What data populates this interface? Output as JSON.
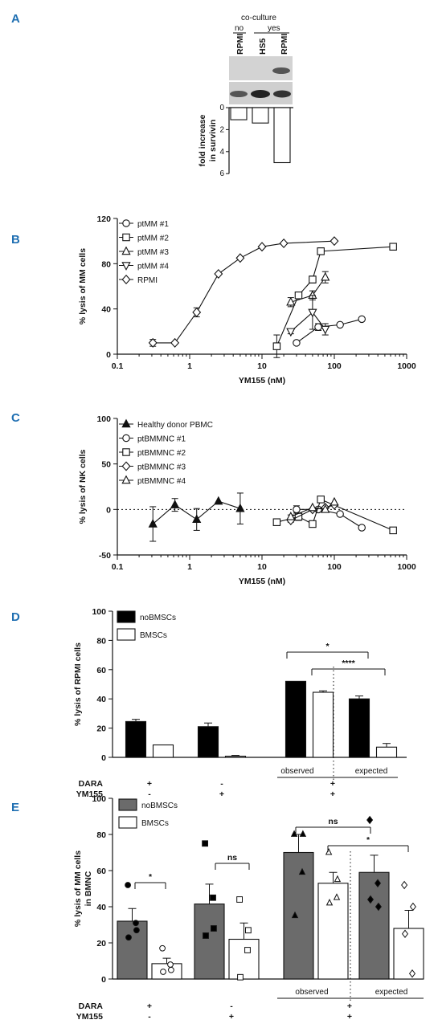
{
  "panels": {
    "A": {
      "letter": "A",
      "coculture_label": "co-culture",
      "no_label": "no",
      "yes_label": "yes",
      "lanes": [
        "RPMI",
        "HS5",
        "RPMI"
      ],
      "ylabel": "fold increase\nin survivin",
      "ticks": [
        "0",
        "2",
        "4",
        "6"
      ]
    },
    "B": {
      "letter": "B"
    },
    "C": {
      "letter": "C"
    },
    "D": {
      "letter": "D"
    },
    "E": {
      "letter": "E"
    }
  },
  "chart_data": [
    {
      "id": "A",
      "type": "bar",
      "categories": [
        "RPMI",
        "HS5",
        "RPMI"
      ],
      "values": [
        1.1,
        1.4,
        5.0
      ],
      "ylabel": "fold increase in survivin",
      "ylim": [
        0,
        6
      ],
      "yticks": [
        0,
        2,
        4,
        6
      ],
      "orientation": "downward"
    },
    {
      "id": "B",
      "type": "line",
      "xscale": "log",
      "xlim": [
        0.1,
        1000
      ],
      "ylim": [
        0,
        120
      ],
      "xticks": [
        "0.1",
        "1",
        "10",
        "100",
        "1000"
      ],
      "yticks": [
        "0",
        "40",
        "80",
        "120"
      ],
      "xlabel": "YM155 (nM)",
      "ylabel": "% lysis of MM cells",
      "legend": "top-left",
      "series": [
        {
          "name": "ptMM #1",
          "marker": "circle",
          "x": [
            30,
            60,
            120,
            240
          ],
          "y": [
            10,
            24,
            26,
            31
          ],
          "err": [
            0,
            3,
            0,
            0
          ]
        },
        {
          "name": "ptMM #2",
          "marker": "square",
          "x": [
            16,
            32,
            50,
            65,
            650
          ],
          "y": [
            7,
            52,
            66,
            91,
            95
          ],
          "err": [
            10,
            3,
            3,
            3,
            3
          ]
        },
        {
          "name": "ptMM #3",
          "marker": "triangle-up",
          "x": [
            25,
            50,
            75
          ],
          "y": [
            46,
            52,
            68
          ],
          "err": [
            4,
            4,
            5
          ]
        },
        {
          "name": "ptMM #4",
          "marker": "triangle-down",
          "x": [
            25,
            50,
            75
          ],
          "y": [
            20,
            37,
            22
          ],
          "err": [
            2,
            15,
            5
          ]
        },
        {
          "name": "RPMI",
          "marker": "diamond",
          "x": [
            0.31,
            0.625,
            1.25,
            2.5,
            5,
            10,
            20,
            100
          ],
          "y": [
            10,
            10,
            37,
            71,
            85,
            95,
            98,
            100
          ],
          "err": [
            3,
            0,
            4,
            0,
            0,
            0,
            0,
            0
          ]
        }
      ]
    },
    {
      "id": "C",
      "type": "line",
      "xscale": "log",
      "xlim": [
        0.1,
        1000
      ],
      "ylim": [
        -50,
        100
      ],
      "xticks": [
        "0.1",
        "1",
        "10",
        "100",
        "1000"
      ],
      "yticks": [
        "-50",
        "0",
        "50",
        "100"
      ],
      "xlabel": "YM155 (nM)",
      "ylabel": "% lysis of NK cells",
      "legend": "top-left",
      "series": [
        {
          "name": "Healthy donor PBMC",
          "marker": "triangle-up-filled",
          "x": [
            0.31,
            0.625,
            1.25,
            2.5,
            5
          ],
          "y": [
            -16,
            5,
            -11,
            9,
            1
          ],
          "err": [
            19,
            7,
            12,
            0,
            17
          ]
        },
        {
          "name": "ptBMMNC #1",
          "marker": "circle",
          "x": [
            30,
            60,
            120,
            240
          ],
          "y": [
            0,
            0,
            -5,
            -20
          ],
          "err": [
            4,
            0,
            0,
            0
          ]
        },
        {
          "name": "ptBMMNC #2",
          "marker": "square",
          "x": [
            16,
            32,
            50,
            65,
            650
          ],
          "y": [
            -14,
            -8,
            -16,
            11,
            -23
          ],
          "err": [
            0,
            4,
            0,
            0,
            0
          ]
        },
        {
          "name": "ptBMMNC #3",
          "marker": "diamond",
          "x": [
            25,
            50,
            75,
            100
          ],
          "y": [
            -12,
            0,
            2,
            5
          ],
          "err": [
            2,
            0,
            0,
            0
          ]
        },
        {
          "name": "ptBMMNC #4",
          "marker": "triangle-up",
          "x": [
            25,
            50,
            75,
            100
          ],
          "y": [
            -8,
            2,
            0,
            8
          ],
          "err": [
            2,
            0,
            0,
            0
          ]
        }
      ]
    },
    {
      "id": "D",
      "type": "bar",
      "ylabel": "% lysis of RPMI cells",
      "ylim": [
        0,
        100
      ],
      "yticks": [
        "0",
        "20",
        "40",
        "60",
        "80",
        "100"
      ],
      "legend": "top-left",
      "series": [
        {
          "name": "noBMSCs",
          "color": "#000000",
          "values": [
            24.5,
            21,
            52,
            40
          ],
          "err": [
            1.5,
            2.5,
            0,
            2
          ]
        },
        {
          "name": "BMSCs",
          "color": "#ffffff",
          "values": [
            8.5,
            0.8,
            44.5,
            7
          ],
          "err": [
            0,
            0.5,
            1,
            2.5
          ]
        }
      ],
      "groups": [
        "observed",
        "expected"
      ],
      "conditions": [
        {
          "DARA": "+",
          "YM155": "-"
        },
        {
          "DARA": "-",
          "YM155": "+"
        },
        {
          "DARA": "+",
          "YM155": "+"
        }
      ],
      "row_labels": [
        "DARA",
        "YM155"
      ],
      "significance": [
        "*",
        "****"
      ]
    },
    {
      "id": "E",
      "type": "bar",
      "ylabel": "% lysis of MM cells in BMNC",
      "ylim": [
        0,
        100
      ],
      "yticks": [
        "0",
        "20",
        "40",
        "60",
        "80",
        "100"
      ],
      "legend": "top-left",
      "series": [
        {
          "name": "noBMSCs",
          "color": "#6b6b6b",
          "values": [
            32,
            41.5,
            70,
            59
          ],
          "err": [
            7,
            11,
            10,
            9.5
          ],
          "points": [
            [
              52,
              27,
              23,
              31
            ],
            [
              75,
              28,
              24,
              45
            ],
            [
              80,
              80,
              35,
              59
            ],
            [
              88,
              40,
              44,
              53
            ]
          ]
        },
        {
          "name": "BMSCs",
          "color": "#ffffff",
          "values": [
            8.5,
            22,
            53,
            28
          ],
          "err": [
            3,
            9,
            6,
            10
          ],
          "points": [
            [
              17,
              5,
              4,
              8
            ],
            [
              44,
              27,
              1,
              16
            ],
            [
              70,
              55,
              42,
              45
            ],
            [
              52,
              40,
              25,
              3
            ]
          ]
        }
      ],
      "groups": [
        "observed",
        "expected"
      ],
      "conditions": [
        {
          "DARA": "+",
          "YM155": "-"
        },
        {
          "DARA": "-",
          "YM155": "+"
        },
        {
          "DARA": "+",
          "YM155": "+"
        }
      ],
      "row_labels": [
        "DARA",
        "YM155"
      ],
      "significance": [
        "*",
        "ns",
        "ns",
        "*"
      ]
    }
  ]
}
